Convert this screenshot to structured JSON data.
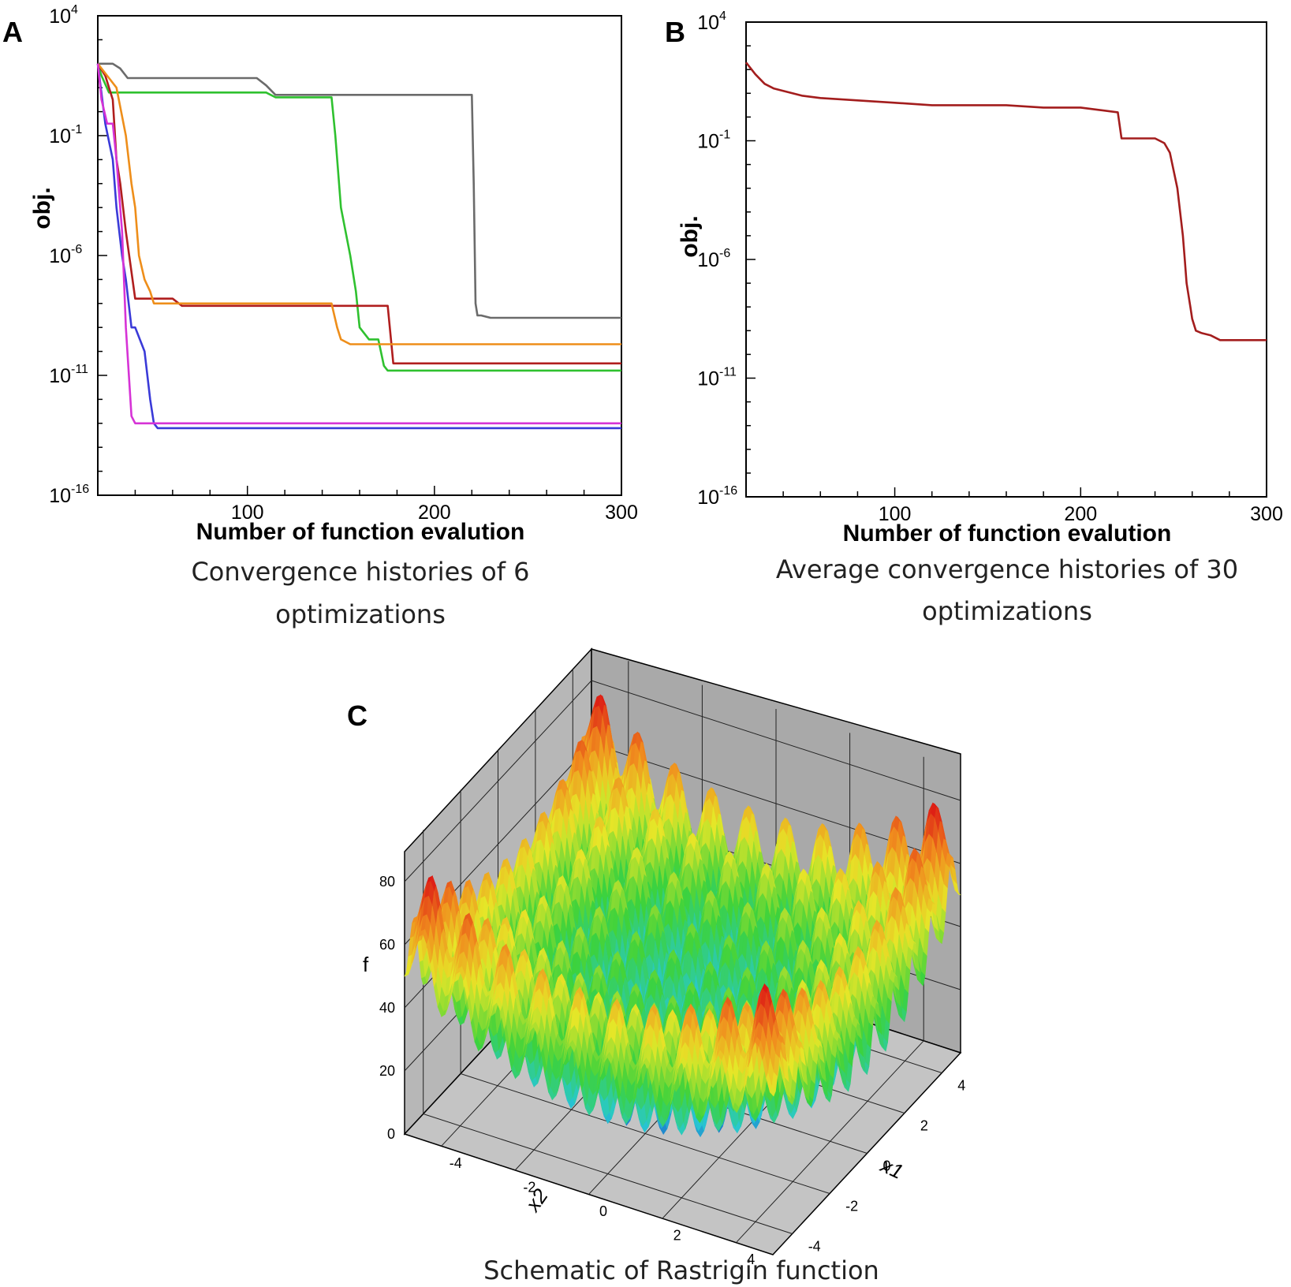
{
  "panels": {
    "a": {
      "label": "A",
      "caption_line1": "Convergence histories of 6",
      "caption_line2": "optimizations"
    },
    "b": {
      "label": "B",
      "caption_line1": "Average convergence histories of 30",
      "caption_line2": "optimizations"
    },
    "c": {
      "label": "C",
      "caption": "Schematic of Rastrigin function"
    }
  },
  "chart_data": [
    {
      "id": "A",
      "type": "line",
      "xlabel": "Number of function evalution",
      "ylabel": "obj.",
      "y_scale": "log",
      "xlim": [
        20,
        300
      ],
      "ylim_exponent": [
        -16,
        4
      ],
      "x_tick_labels": [
        "100",
        "200",
        "300"
      ],
      "y_tick_labels": [
        {
          "base": "10",
          "exp": "4"
        },
        {
          "base": "10",
          "exp": "-1"
        },
        {
          "base": "10",
          "exp": "-6"
        },
        {
          "base": "10",
          "exp": "-11"
        },
        {
          "base": "10",
          "exp": "-16"
        }
      ],
      "series": [
        {
          "color": "#6b6b6b",
          "x": [
            20,
            28,
            32,
            36,
            40,
            105,
            110,
            115,
            220,
            221,
            222,
            223,
            225,
            230,
            300
          ],
          "y_exp": [
            2,
            2,
            1.8,
            1.4,
            1.4,
            1.4,
            1.1,
            0.7,
            0.7,
            -3,
            -8,
            -8.5,
            -8.5,
            -8.6,
            -8.6
          ]
        },
        {
          "color": "#2fc12f",
          "x": [
            20,
            22,
            26,
            30,
            110,
            115,
            145,
            147,
            150,
            155,
            158,
            160,
            165,
            170,
            173,
            175,
            300
          ],
          "y_exp": [
            2,
            1.5,
            0.8,
            0.8,
            0.8,
            0.6,
            0.6,
            -1,
            -4,
            -6,
            -7.5,
            -9,
            -9.5,
            -9.5,
            -10.6,
            -10.8,
            -10.8
          ]
        },
        {
          "color": "#b01e1e",
          "x": [
            20,
            24,
            28,
            30,
            32,
            35,
            40,
            60,
            65,
            175,
            178,
            180,
            300
          ],
          "y_exp": [
            2,
            1.5,
            0.5,
            -2,
            -3,
            -5,
            -7.8,
            -7.8,
            -8.1,
            -8.1,
            -10.5,
            -10.5,
            -10.5
          ]
        },
        {
          "color": "#ee8e1a",
          "x": [
            20,
            25,
            30,
            35,
            38,
            40,
            42,
            45,
            48,
            50,
            55,
            65,
            70,
            145,
            148,
            150,
            155,
            300
          ],
          "y_exp": [
            2,
            1.5,
            1,
            -1,
            -3,
            -4,
            -6,
            -7,
            -7.5,
            -8,
            -8,
            -8,
            -8,
            -8,
            -9,
            -9.5,
            -9.7,
            -9.7
          ]
        },
        {
          "color": "#3a3ad8",
          "x": [
            20,
            24,
            28,
            30,
            33,
            35,
            38,
            40,
            45,
            48,
            50,
            52,
            55,
            300
          ],
          "y_exp": [
            2,
            -0.5,
            -2,
            -4,
            -6,
            -7,
            -9,
            -9,
            -10,
            -12,
            -13,
            -13.2,
            -13.2,
            -13.2
          ]
        },
        {
          "color": "#d633d6",
          "x": [
            20,
            22,
            25,
            28,
            30,
            33,
            35,
            38,
            40,
            300
          ],
          "y_exp": [
            2,
            0.5,
            -0.5,
            -0.5,
            -2,
            -5,
            -9,
            -12.7,
            -13,
            -13
          ]
        }
      ]
    },
    {
      "id": "B",
      "type": "line",
      "xlabel": "Number of function evalution",
      "ylabel": "obj.",
      "y_scale": "log",
      "xlim": [
        20,
        300
      ],
      "ylim_exponent": [
        -16,
        4
      ],
      "x_tick_labels": [
        "100",
        "200",
        "300"
      ],
      "y_tick_labels": [
        {
          "base": "10",
          "exp": "4"
        },
        {
          "base": "10",
          "exp": "-1"
        },
        {
          "base": "10",
          "exp": "-6"
        },
        {
          "base": "10",
          "exp": "-11"
        },
        {
          "base": "10",
          "exp": "-16"
        }
      ],
      "series": [
        {
          "color": "#a31d1d",
          "x": [
            20,
            25,
            30,
            35,
            40,
            50,
            60,
            80,
            100,
            120,
            140,
            160,
            180,
            200,
            210,
            220,
            222,
            240,
            245,
            248,
            252,
            255,
            256,
            257,
            258,
            259,
            260,
            262,
            265,
            270,
            275,
            300
          ],
          "y_exp": [
            2.3,
            1.8,
            1.4,
            1.2,
            1.1,
            0.9,
            0.8,
            0.7,
            0.6,
            0.5,
            0.5,
            0.5,
            0.4,
            0.4,
            0.3,
            0.2,
            -0.9,
            -0.9,
            -1.1,
            -1.5,
            -3,
            -5,
            -6,
            -7,
            -7.5,
            -8,
            -8.5,
            -9,
            -9.1,
            -9.2,
            -9.4,
            -9.4
          ]
        }
      ]
    },
    {
      "id": "C",
      "type": "surface",
      "function": "Rastrigin",
      "z_label": "f",
      "x_label": "x1",
      "y_label": "x2",
      "z_tick_labels": [
        "0",
        "20",
        "40",
        "60",
        "80"
      ],
      "x1_tick_labels": [
        "-4",
        "-2",
        "0",
        "2",
        "4"
      ],
      "x2_tick_labels": [
        "-4",
        "-2",
        "0",
        "2",
        "4"
      ]
    }
  ]
}
